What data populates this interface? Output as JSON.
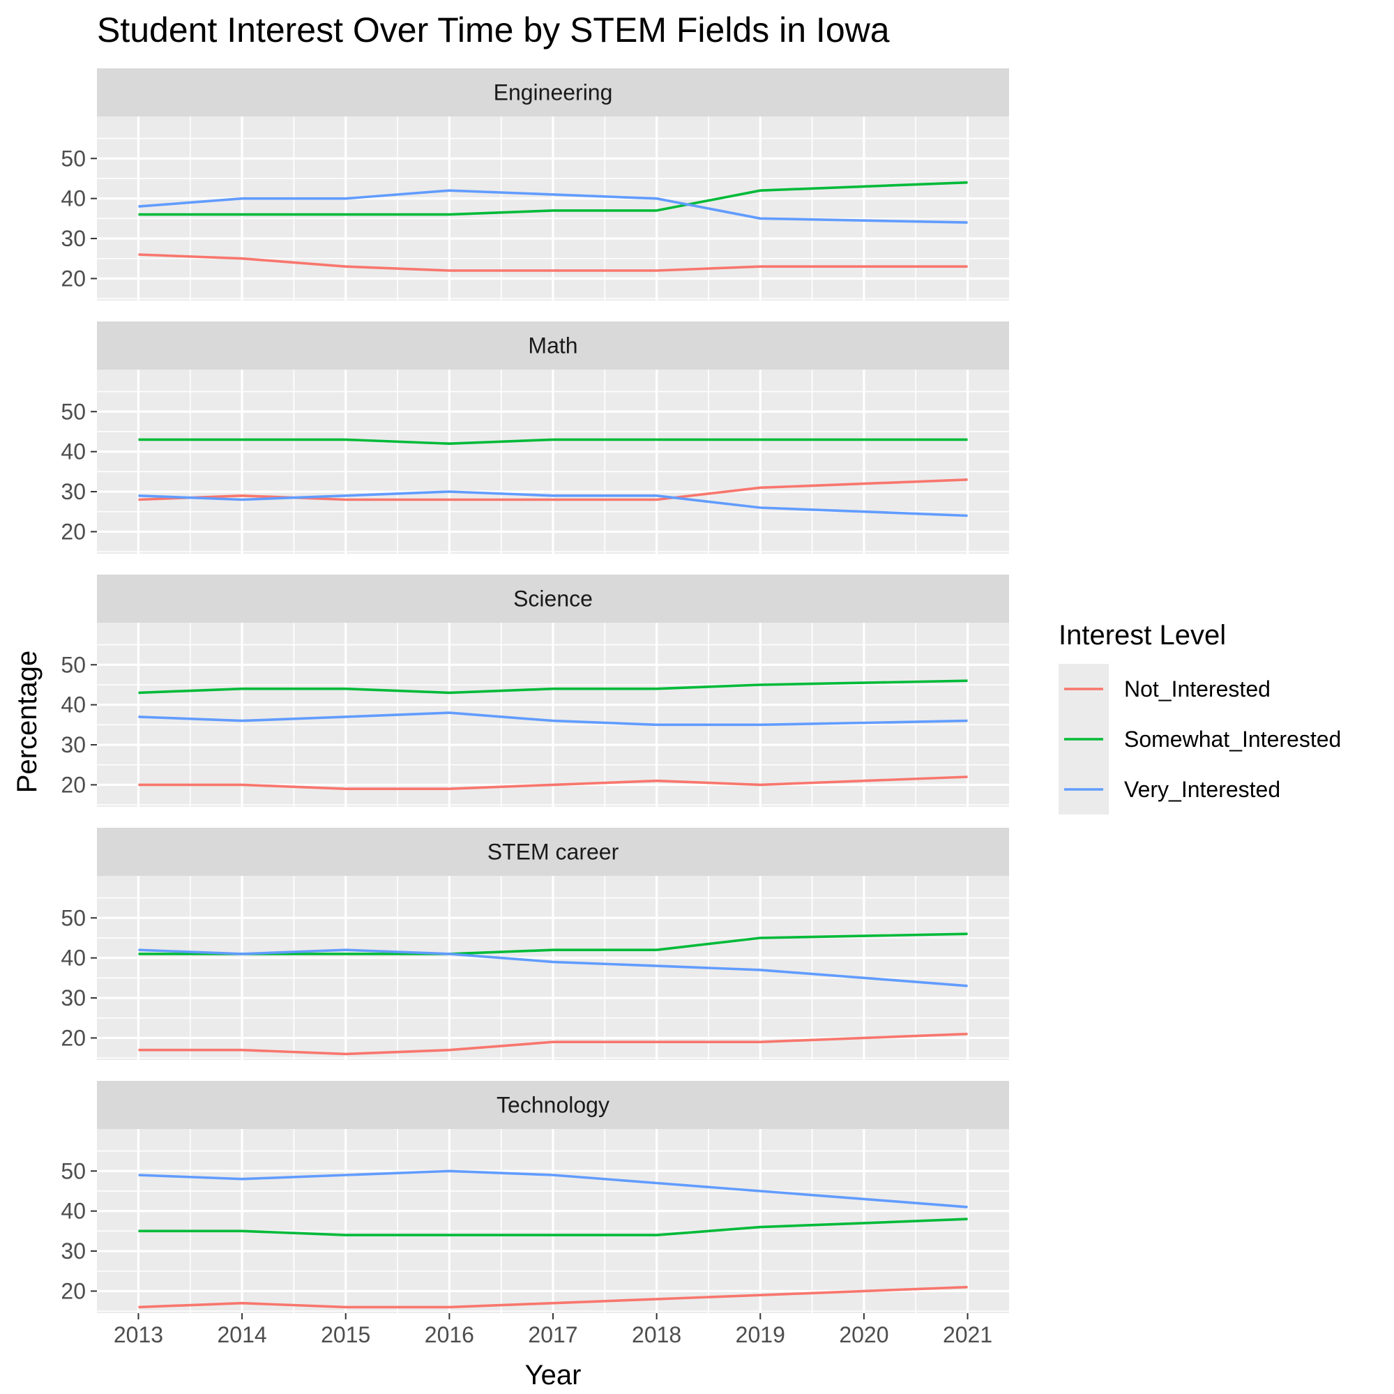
{
  "chart_data": {
    "type": "line",
    "title": "Student Interest Over Time by STEM Fields in Iowa",
    "xlabel": "Year",
    "ylabel": "Percentage",
    "x": [
      2013,
      2014,
      2015,
      2016,
      2017,
      2018,
      2019,
      2020,
      2021
    ],
    "x_tick_labels": [
      "2013",
      "2014",
      "2015",
      "2016",
      "2017",
      "2018",
      "2019",
      "2020",
      "2021"
    ],
    "xlim": [
      2012.6,
      2021.4
    ],
    "ylim": [
      14.5,
      60.5
    ],
    "y_ticks": [
      20,
      30,
      40,
      50
    ],
    "y_tick_labels": [
      "20",
      "30",
      "40",
      "50"
    ],
    "grid": true,
    "legend": {
      "title": "Interest Level",
      "position": "right",
      "entries": [
        "Not_Interested",
        "Somewhat_Interested",
        "Very_Interested"
      ]
    },
    "colors": {
      "Not_Interested": "#F8766D",
      "Somewhat_Interested": "#00BA38",
      "Very_Interested": "#619CFF"
    },
    "facets": [
      {
        "label": "Engineering",
        "series": [
          {
            "name": "Not_Interested",
            "values": [
              26,
              25,
              23,
              22,
              22,
              22,
              23,
              23,
              23
            ]
          },
          {
            "name": "Somewhat_Interested",
            "values": [
              36,
              36,
              36,
              36,
              37,
              37,
              42,
              43,
              44
            ]
          },
          {
            "name": "Very_Interested",
            "values": [
              38,
              40,
              40,
              42,
              41,
              40,
              35,
              34.5,
              34
            ]
          }
        ]
      },
      {
        "label": "Math",
        "series": [
          {
            "name": "Not_Interested",
            "values": [
              28,
              29,
              28,
              28,
              28,
              28,
              31,
              32,
              33
            ]
          },
          {
            "name": "Somewhat_Interested",
            "values": [
              43,
              43,
              43,
              42,
              43,
              43,
              43,
              43,
              43
            ]
          },
          {
            "name": "Very_Interested",
            "values": [
              29,
              28,
              29,
              30,
              29,
              29,
              26,
              25,
              24
            ]
          }
        ]
      },
      {
        "label": "Science",
        "series": [
          {
            "name": "Not_Interested",
            "values": [
              20,
              20,
              19,
              19,
              20,
              21,
              20,
              21,
              22
            ]
          },
          {
            "name": "Somewhat_Interested",
            "values": [
              43,
              44,
              44,
              43,
              44,
              44,
              45,
              45.5,
              46
            ]
          },
          {
            "name": "Very_Interested",
            "values": [
              37,
              36,
              37,
              38,
              36,
              35,
              35,
              35.5,
              36
            ]
          }
        ]
      },
      {
        "label": "STEM career",
        "series": [
          {
            "name": "Not_Interested",
            "values": [
              17,
              17,
              16,
              17,
              19,
              19,
              19,
              20,
              21
            ]
          },
          {
            "name": "Somewhat_Interested",
            "values": [
              41,
              41,
              41,
              41,
              42,
              42,
              45,
              45.5,
              46
            ]
          },
          {
            "name": "Very_Interested",
            "values": [
              42,
              41,
              42,
              41,
              39,
              38,
              37,
              35,
              33
            ]
          }
        ]
      },
      {
        "label": "Technology",
        "series": [
          {
            "name": "Not_Interested",
            "values": [
              16,
              17,
              16,
              16,
              17,
              18,
              19,
              20,
              21
            ]
          },
          {
            "name": "Somewhat_Interested",
            "values": [
              35,
              35,
              34,
              34,
              34,
              34,
              36,
              37,
              38
            ]
          },
          {
            "name": "Very_Interested",
            "values": [
              49,
              48,
              49,
              50,
              49,
              47,
              45,
              43,
              41
            ]
          }
        ]
      }
    ]
  }
}
